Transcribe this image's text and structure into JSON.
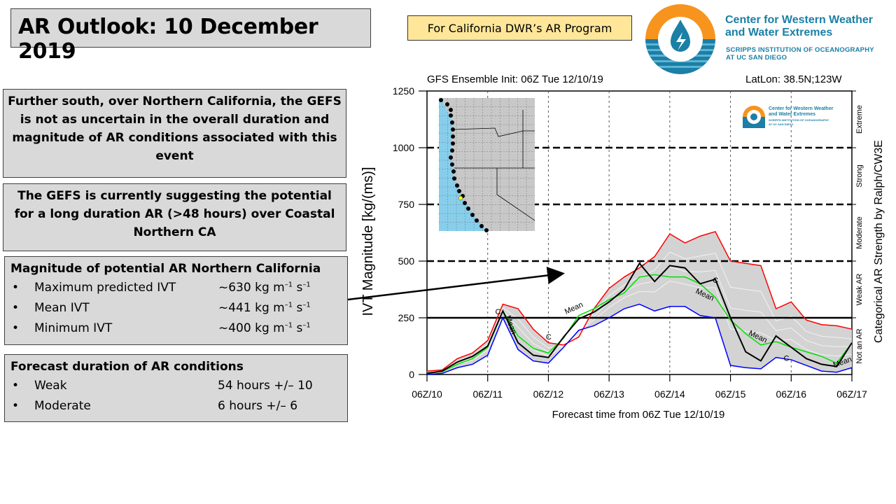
{
  "header": {
    "title": "AR Outlook: 10 December 2019",
    "program_label": "For California DWR’s AR Program"
  },
  "logo": {
    "name_line1": "Center for Western Weather",
    "name_line2": "and Water Extremes",
    "sub_line1": "SCRIPPS INSTITUTION OF OCEANOGRAPHY",
    "sub_line2": "AT UC SAN DIEGO",
    "colors": {
      "orange": "#f7941d",
      "blue": "#1b7fa6"
    }
  },
  "paragraphs": [
    "Further south, over Northern California, the GEFS is not as uncertain in the overall duration and magnitude of AR conditions associated with this event",
    "The GEFS is currently suggesting the potential for a long duration AR (>48 hours) over Coastal Northern CA"
  ],
  "magnitude": {
    "heading": "Magnitude of potential AR Northern California",
    "items": [
      {
        "label": "Maximum predicted IVT",
        "value": "~630 kg m",
        "unit_exp1": "–1",
        "unit_s": " s",
        "unit_exp2": "–1"
      },
      {
        "label": "Mean IVT",
        "value": "~441 kg m",
        "unit_exp1": "–1",
        "unit_s": " s",
        "unit_exp2": "–1"
      },
      {
        "label": "Minimum IVT",
        "value": "~400 kg m",
        "unit_exp1": "–1",
        "unit_s": " s",
        "unit_exp2": "–1"
      }
    ]
  },
  "duration": {
    "heading": "Forecast duration of AR conditions",
    "items": [
      {
        "label": "Weak",
        "value": "54 hours +/– 10"
      },
      {
        "label": "Moderate",
        "value": "6 hours +/– 6"
      }
    ]
  },
  "bullet": "•",
  "chart_data": {
    "type": "line",
    "title": "GFS Ensemble Init: 06Z Tue 12/10/19",
    "location": "LatLon: 38.5N;123W",
    "xlabel": "Forecast time from 06Z Tue 12/10/19",
    "ylabel": "IVT Magnitude [kg/(ms)]",
    "right_label": "Categorical AR Strength by Ralph/CW3E",
    "x_ticks": [
      "06Z/10",
      "06Z/11",
      "06Z/12",
      "06Z/13",
      "06Z/14",
      "06Z/15",
      "06Z/16",
      "06Z/17"
    ],
    "y_ticks": [
      0,
      250,
      500,
      750,
      1000,
      1250
    ],
    "ylim": [
      0,
      1250
    ],
    "x_hours_range": [
      0,
      168
    ],
    "categories_right": [
      "Not an AR",
      "Weak AR",
      "Moderate",
      "Strong",
      "Extreme"
    ],
    "thresholds": [
      {
        "value": 250,
        "style": "solid"
      },
      {
        "value": 500,
        "style": "dashed"
      },
      {
        "value": 750,
        "style": "dashed"
      },
      {
        "value": 1000,
        "style": "dashed"
      }
    ],
    "x_hours": [
      0,
      6,
      12,
      18,
      24,
      30,
      36,
      42,
      48,
      54,
      60,
      66,
      72,
      78,
      84,
      90,
      96,
      102,
      108,
      114,
      120,
      126,
      132,
      138,
      144,
      150,
      156,
      162,
      168
    ],
    "series": [
      {
        "name": "Maximum",
        "color": "#ff0000",
        "values": [
          15,
          20,
          70,
          95,
          150,
          310,
          290,
          200,
          140,
          130,
          165,
          290,
          380,
          430,
          470,
          520,
          620,
          580,
          610,
          630,
          500,
          490,
          480,
          290,
          320,
          240,
          220,
          215,
          200
        ]
      },
      {
        "name": "Mean",
        "color": "#00e000",
        "label": "Mean",
        "values": [
          8,
          12,
          45,
          70,
          120,
          280,
          170,
          115,
          95,
          160,
          260,
          290,
          330,
          360,
          430,
          440,
          430,
          430,
          400,
          340,
          240,
          180,
          130,
          145,
          120,
          100,
          80,
          50,
          140
        ]
      },
      {
        "name": "Control",
        "color": "#000000",
        "label": "C",
        "values": [
          5,
          15,
          55,
          80,
          125,
          280,
          140,
          85,
          75,
          165,
          245,
          275,
          320,
          375,
          490,
          410,
          480,
          470,
          400,
          420,
          250,
          100,
          60,
          170,
          120,
          70,
          45,
          35,
          140
        ]
      },
      {
        "name": "Minimum",
        "color": "#0000ff",
        "values": [
          0,
          5,
          30,
          45,
          85,
          250,
          110,
          60,
          50,
          120,
          195,
          215,
          250,
          290,
          310,
          280,
          300,
          300,
          260,
          250,
          40,
          30,
          25,
          75,
          65,
          40,
          15,
          10,
          30
        ]
      }
    ],
    "envelope": {
      "upper": [
        15,
        20,
        70,
        95,
        150,
        310,
        290,
        200,
        140,
        130,
        165,
        290,
        380,
        430,
        470,
        520,
        620,
        580,
        610,
        630,
        500,
        490,
        480,
        290,
        320,
        240,
        220,
        215,
        200
      ],
      "lower": [
        0,
        5,
        30,
        45,
        85,
        250,
        110,
        60,
        50,
        120,
        195,
        215,
        250,
        290,
        310,
        280,
        300,
        300,
        260,
        250,
        40,
        30,
        25,
        75,
        65,
        40,
        15,
        10,
        30
      ],
      "color": "#d3d3d3"
    },
    "inset_map": {
      "ocean_color": "#87ceeb",
      "land_color": "#c8c8c8",
      "highlight_point_color": "#ffff00"
    },
    "annotations": [
      "Mean",
      "C",
      "Extreme",
      "Strong",
      "Moderate",
      "Weak AR",
      "Not an AR"
    ],
    "inset_logo": {
      "line1": "Center for Western Weather",
      "line2": "and Water Extremes",
      "line3": "SCRIPPS INSTITUTION OF OCEANOGRAPHY",
      "line4": "AT UC SAN DIEGO"
    }
  }
}
